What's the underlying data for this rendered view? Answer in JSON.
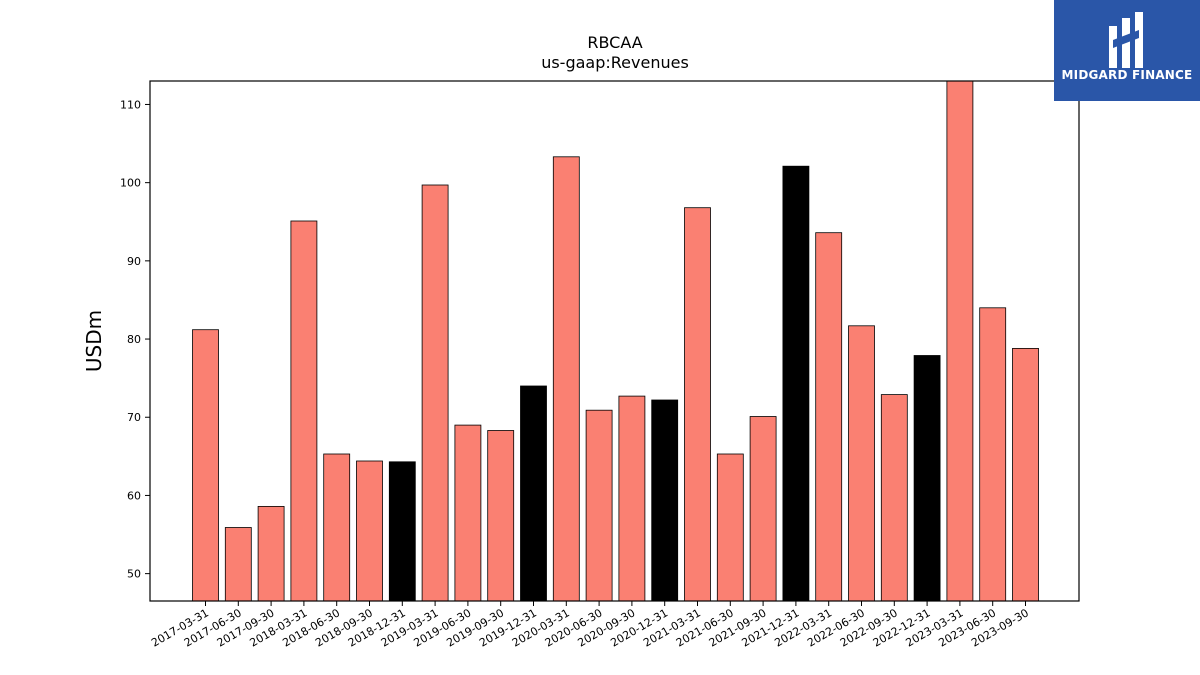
{
  "brand": {
    "name": "MIDGARD FINANCE",
    "bg_color": "#2a56a8",
    "text_color": "#ffffff"
  },
  "chart_data": {
    "type": "bar",
    "title": "RBCAA",
    "subtitle": "us-gaap:Revenues",
    "xlabel": "",
    "ylabel": "USDm",
    "ylim": [
      46.5,
      113
    ],
    "yticks": [
      50,
      60,
      70,
      80,
      90,
      100,
      110
    ],
    "grid": false,
    "colors": {
      "default": "#fa8072",
      "highlight": "#000000"
    },
    "categories": [
      "2017-03-31",
      "2017-06-30",
      "2017-09-30",
      "2018-03-31",
      "2018-06-30",
      "2018-09-30",
      "2018-12-31",
      "2019-03-31",
      "2019-06-30",
      "2019-09-30",
      "2019-12-31",
      "2020-03-31",
      "2020-06-30",
      "2020-09-30",
      "2020-12-31",
      "2021-03-31",
      "2021-06-30",
      "2021-09-30",
      "2021-12-31",
      "2022-03-31",
      "2022-06-30",
      "2022-09-30",
      "2022-12-31",
      "2023-03-31",
      "2023-06-30",
      "2023-09-30"
    ],
    "values": [
      81.2,
      55.9,
      58.6,
      95.1,
      65.3,
      64.4,
      64.3,
      99.7,
      69.0,
      68.3,
      74.0,
      103.3,
      70.9,
      72.7,
      72.2,
      96.8,
      65.3,
      70.1,
      102.1,
      93.6,
      81.7,
      72.9,
      77.9,
      113,
      84.0,
      78.8
    ],
    "highlight": [
      false,
      false,
      false,
      false,
      false,
      false,
      true,
      false,
      false,
      false,
      true,
      false,
      false,
      false,
      true,
      false,
      false,
      false,
      true,
      false,
      false,
      false,
      true,
      false,
      false,
      false
    ]
  }
}
